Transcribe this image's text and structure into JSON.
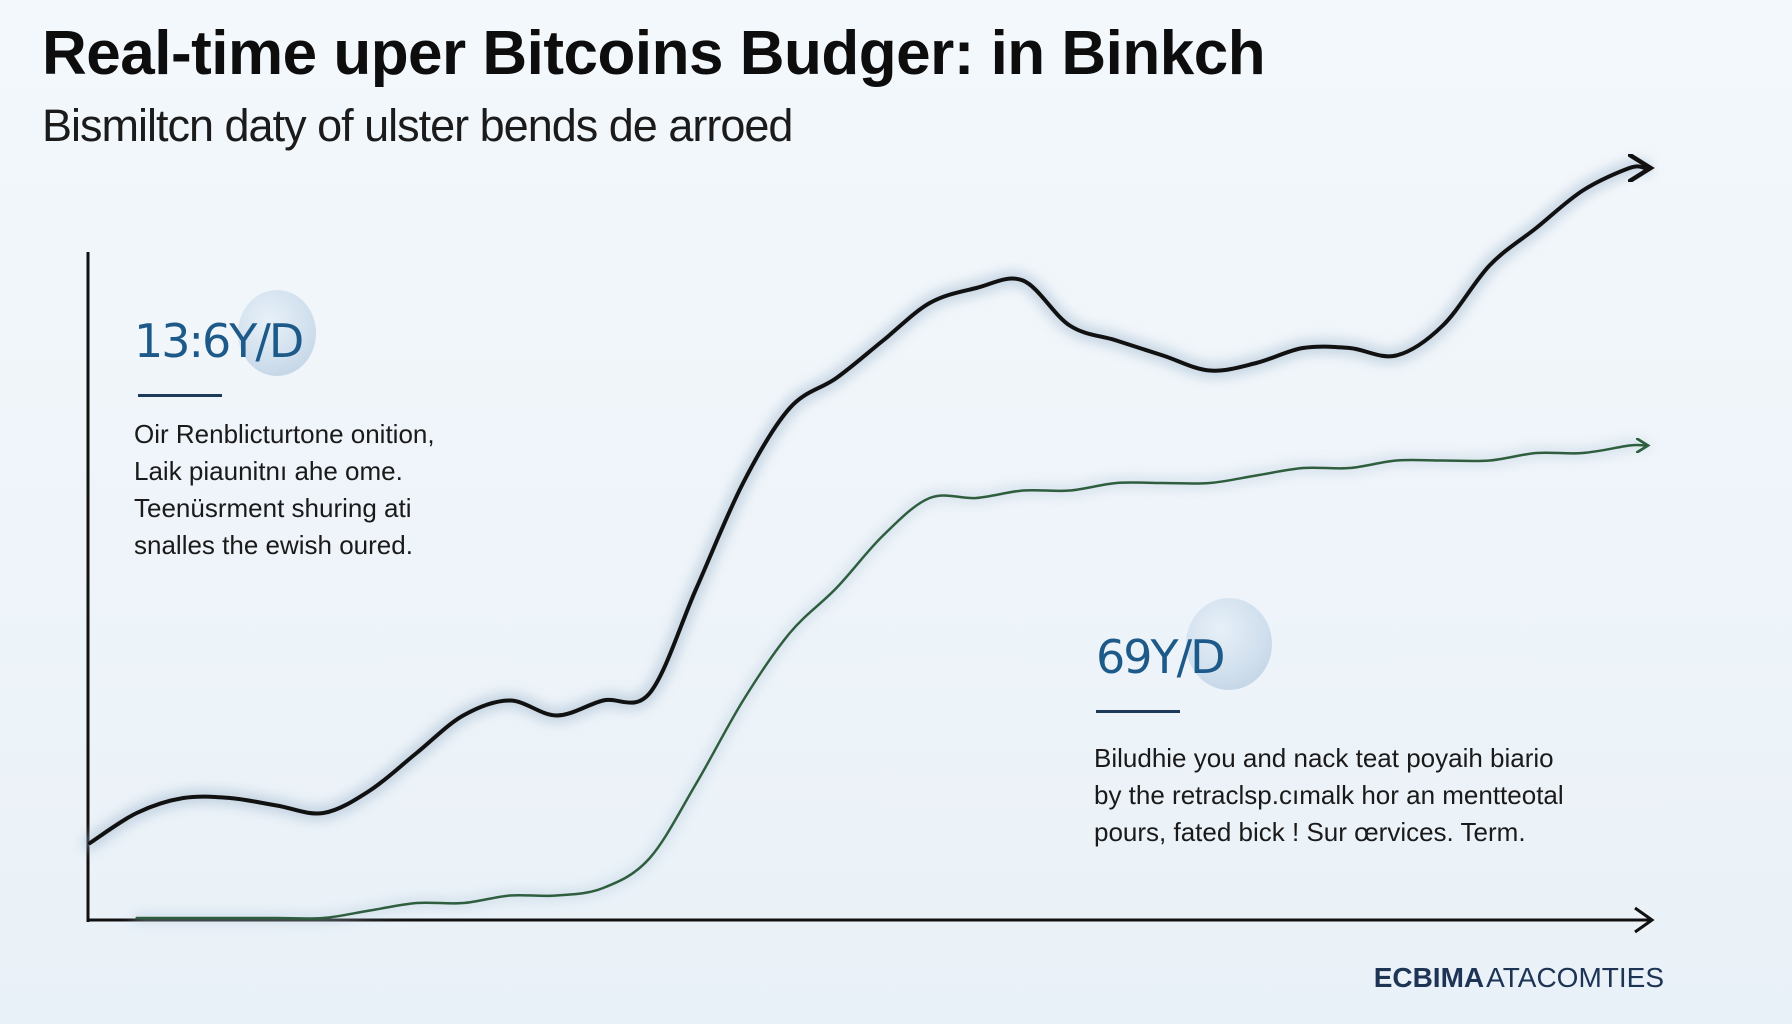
{
  "title": "Real-time uper Bitcoins Budger: in Binkch",
  "subtitle": "Bismiltcn daty of ulster bends de arroed",
  "colors": {
    "series_dark": "#111111",
    "series_green": "#2e5e3e",
    "axis": "#111111",
    "value_blue": "#1d5a8a",
    "brand": "#1d3455"
  },
  "callouts": [
    {
      "value": "13:6Y/D",
      "lines": [
        "Oir Renblicturtone onition,",
        "Laik piaunitnı ahe ome.",
        "Teenüsrment shuring ati",
        "snalles the ewish oured."
      ]
    },
    {
      "value": "69Y/D",
      "lines": [
        "Biludhie you and nack teat poyaih biario",
        "by the retraclsp.cımalk hor an mentteotal",
        "pours, fated bick ! Sur œrvices. Term."
      ]
    }
  ],
  "footer": {
    "brand_bold": "ECBIMA",
    "brand_rest": "ATACOMTIES"
  },
  "chart_data": {
    "type": "line",
    "title": "Real-time uper Bitcoins Budger: in Binkch",
    "subtitle": "Bismiltcn daty of ulster bends de arroed",
    "xlabel": "",
    "ylabel": "",
    "x": [
      0,
      3,
      6,
      9,
      12,
      15,
      18,
      21,
      24,
      27,
      30,
      33,
      36,
      39,
      42,
      45,
      48,
      51,
      54,
      57,
      60,
      63,
      66,
      69,
      72,
      75,
      78,
      81,
      84,
      87,
      90,
      93,
      96,
      99,
      100
    ],
    "xlim": [
      0,
      100
    ],
    "ylim": [
      0,
      100
    ],
    "grid": false,
    "series": [
      {
        "values": [
          10,
          14,
          16,
          16,
          15,
          14,
          17,
          22,
          27,
          29,
          27,
          29,
          30,
          44,
          58,
          68,
          72,
          77,
          82,
          84,
          85,
          79,
          77,
          75,
          73,
          74,
          76,
          76,
          75,
          79,
          87,
          92,
          97,
          100,
          100
        ]
      },
      {
        "values": [
          null,
          0,
          0,
          0,
          0,
          0,
          1,
          2,
          2,
          3,
          3,
          4,
          8,
          18,
          29,
          38,
          44,
          51,
          56,
          56,
          57,
          57,
          58,
          58,
          58,
          59,
          60,
          60,
          61,
          61,
          61,
          62,
          62,
          63,
          63
        ]
      }
    ]
  }
}
